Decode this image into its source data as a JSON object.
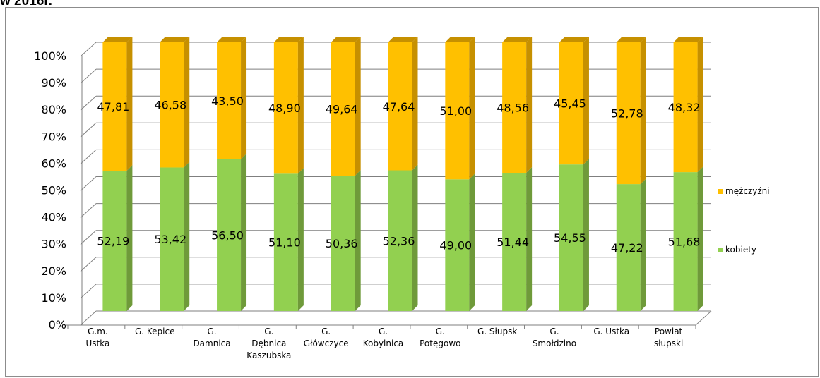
{
  "header": {
    "caption": "w 2016r."
  },
  "colors": {
    "kobiety": "#92d050",
    "kobiety_side": "#6f9a3a",
    "kobiety_top": "#a7db6f",
    "mezczyzni": "#ffc000",
    "mezczyzni_side": "#c69000",
    "mezczyzni_top": "#ffd24d",
    "grid": "#7f7f7f",
    "axis": "#7f7f7f"
  },
  "chart_data": {
    "type": "bar",
    "stacked": "percent",
    "three_d": true,
    "categories": [
      [
        "G.m.",
        "Ustka"
      ],
      [
        "G. Kepice"
      ],
      [
        "G.",
        "Damnica"
      ],
      [
        "G.",
        "Dębnica",
        "Kaszubska"
      ],
      [
        "G.",
        "Główczyce"
      ],
      [
        "G.",
        "Kobylnica"
      ],
      [
        "G.",
        "Potęgowo"
      ],
      [
        "G. Słupsk"
      ],
      [
        "G.",
        "Smołdzino"
      ],
      [
        "G. Ustka"
      ],
      [
        "Powiat",
        "słupski"
      ]
    ],
    "series": [
      {
        "name": "kobiety",
        "values": [
          52.19,
          53.42,
          56.5,
          51.1,
          50.36,
          52.36,
          49.0,
          51.44,
          54.55,
          47.22,
          51.68
        ],
        "labels": [
          "52,19",
          "53,42",
          "56,50",
          "51,10",
          "50,36",
          "52,36",
          "49,00",
          "51,44",
          "54,55",
          "47,22",
          "51,68"
        ]
      },
      {
        "name": "mężczyźni",
        "values": [
          47.81,
          46.58,
          43.5,
          48.9,
          49.64,
          47.64,
          51.0,
          48.56,
          45.45,
          52.78,
          48.32
        ],
        "labels": [
          "47,81",
          "46,58",
          "43,50",
          "48,90",
          "49,64",
          "47,64",
          "51,00",
          "48,56",
          "45,45",
          "52,78",
          "48,32"
        ]
      }
    ],
    "yticks": [
      "0%",
      "10%",
      "20%",
      "30%",
      "40%",
      "50%",
      "60%",
      "70%",
      "80%",
      "90%",
      "100%"
    ],
    "ylim": [
      0,
      100
    ],
    "grid": true,
    "legend": {
      "position": "right",
      "entries": [
        "mężczyźni",
        "kobiety"
      ]
    }
  }
}
